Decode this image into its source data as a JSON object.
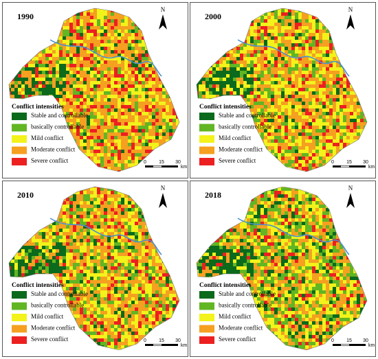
{
  "panels": [
    {
      "year": "1990"
    },
    {
      "year": "2000"
    },
    {
      "year": "2010"
    },
    {
      "year": "2018"
    }
  ],
  "legend": {
    "title": "Conflict intensities",
    "items": [
      {
        "label": "Stable and controllable",
        "color": "#0b6a1c"
      },
      {
        "label": "basically controllable",
        "color": "#62b523"
      },
      {
        "label": "Mild conflict",
        "color": "#f3f21a"
      },
      {
        "label": "Moderate conflict",
        "color": "#f5a020"
      },
      {
        "label": "Severe conflict",
        "color": "#ec2020"
      }
    ]
  },
  "north": "N",
  "scale_bar": {
    "ticks": [
      "0",
      "15",
      "30"
    ],
    "unit": "km"
  }
}
